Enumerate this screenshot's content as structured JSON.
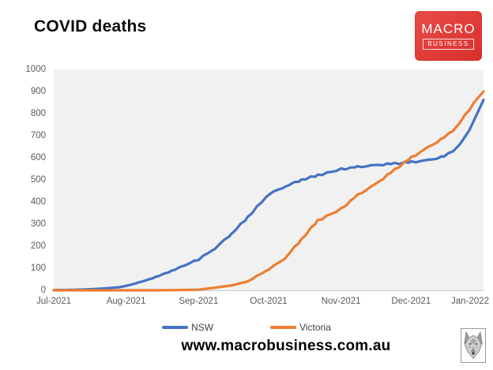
{
  "header": {
    "title": "COVID deaths",
    "logo": {
      "line1": "MACRO",
      "line2": "BUSINESS",
      "bg_color": "#dd3633",
      "text_color": "#ffffff"
    }
  },
  "footer": {
    "website": "www.macrobusiness.com.au",
    "wolf_icon": "wolf-logo"
  },
  "chart_data": {
    "type": "line",
    "title": "COVID deaths",
    "xlabel": "",
    "ylabel": "",
    "ylim": [
      0,
      1000
    ],
    "y_ticks": [
      0,
      100,
      200,
      300,
      400,
      500,
      600,
      700,
      800,
      900,
      1000
    ],
    "x_unit": "days since 2021-07-01",
    "x_range_days": [
      0,
      184
    ],
    "x_tick_days": [
      0,
      31,
      62,
      92,
      123,
      153,
      184
    ],
    "x_tick_labels": [
      "Jul-2021",
      "Aug-2021",
      "Sep-2021",
      "Oct-2021",
      "Nov-2021",
      "Dec-2021",
      "Jan-2022"
    ],
    "grid": false,
    "plot_bg": "#f1f1f1",
    "axis_text_color": "#595959",
    "legend_position": "bottom",
    "series": [
      {
        "name": "NSW",
        "color": "#4472C4",
        "points": [
          [
            0,
            1
          ],
          [
            7,
            2
          ],
          [
            14,
            4
          ],
          [
            21,
            8
          ],
          [
            28,
            14
          ],
          [
            31,
            20
          ],
          [
            38,
            40
          ],
          [
            45,
            65
          ],
          [
            52,
            95
          ],
          [
            62,
            140
          ],
          [
            69,
            190
          ],
          [
            76,
            255
          ],
          [
            83,
            330
          ],
          [
            92,
            435
          ],
          [
            99,
            470
          ],
          [
            106,
            500
          ],
          [
            113,
            520
          ],
          [
            123,
            548
          ],
          [
            130,
            558
          ],
          [
            137,
            565
          ],
          [
            144,
            572
          ],
          [
            153,
            580
          ],
          [
            160,
            588
          ],
          [
            167,
            605
          ],
          [
            172,
            640
          ],
          [
            176,
            690
          ],
          [
            180,
            770
          ],
          [
            184,
            862
          ]
        ]
      },
      {
        "name": "Victoria",
        "color": "#ED7D31",
        "points": [
          [
            0,
            0
          ],
          [
            14,
            0
          ],
          [
            31,
            0
          ],
          [
            45,
            0
          ],
          [
            52,
            1
          ],
          [
            62,
            3
          ],
          [
            69,
            12
          ],
          [
            76,
            22
          ],
          [
            83,
            40
          ],
          [
            92,
            95
          ],
          [
            99,
            145
          ],
          [
            106,
            230
          ],
          [
            113,
            315
          ],
          [
            123,
            368
          ],
          [
            130,
            430
          ],
          [
            137,
            475
          ],
          [
            144,
            530
          ],
          [
            153,
            600
          ],
          [
            160,
            645
          ],
          [
            167,
            690
          ],
          [
            172,
            735
          ],
          [
            176,
            790
          ],
          [
            180,
            850
          ],
          [
            184,
            900
          ]
        ]
      }
    ]
  }
}
